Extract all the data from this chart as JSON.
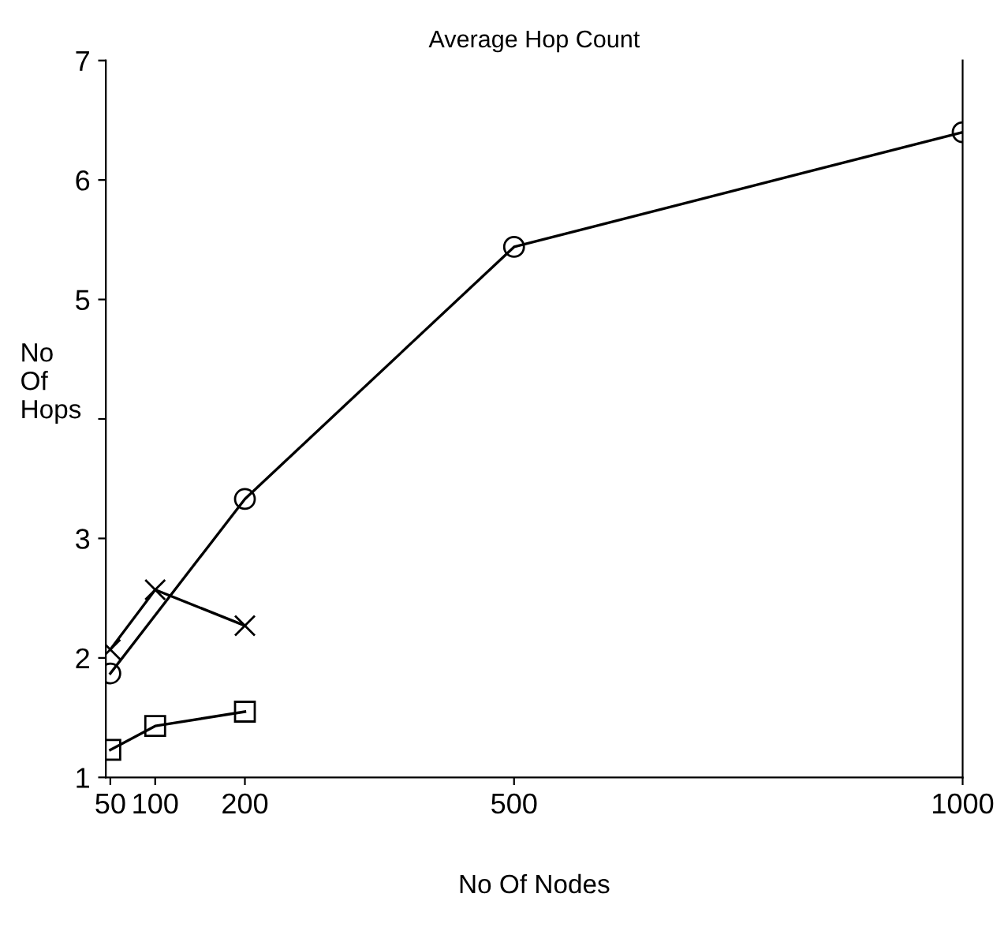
{
  "chart_data": {
    "type": "line",
    "title": "Average Hop Count",
    "xlabel": "No Of Nodes",
    "ylabel": "No\nOf\nHops",
    "xlim": [
      45,
      1000
    ],
    "xticks": [
      50,
      100,
      200,
      500,
      1000
    ],
    "ylim": [
      1,
      7
    ],
    "yticks": [
      1,
      2,
      3,
      {
        "value": 4,
        "label": null
      },
      5,
      6,
      7
    ],
    "grid": false,
    "legend": false,
    "line_style": "solid",
    "series": [
      {
        "color": "#000000",
        "marker": "circle",
        "x": [
          50,
          200,
          500,
          1000
        ],
        "values": [
          1.87,
          3.33,
          5.44,
          6.4
        ]
      },
      {
        "color": "#000000",
        "marker": "cross",
        "x": [
          50,
          100,
          200
        ],
        "values": [
          2.07,
          2.57,
          2.27
        ]
      },
      {
        "color": "#000000",
        "marker": "square",
        "x": [
          50,
          100,
          200
        ],
        "values": [
          1.23,
          1.43,
          1.55
        ]
      }
    ]
  }
}
